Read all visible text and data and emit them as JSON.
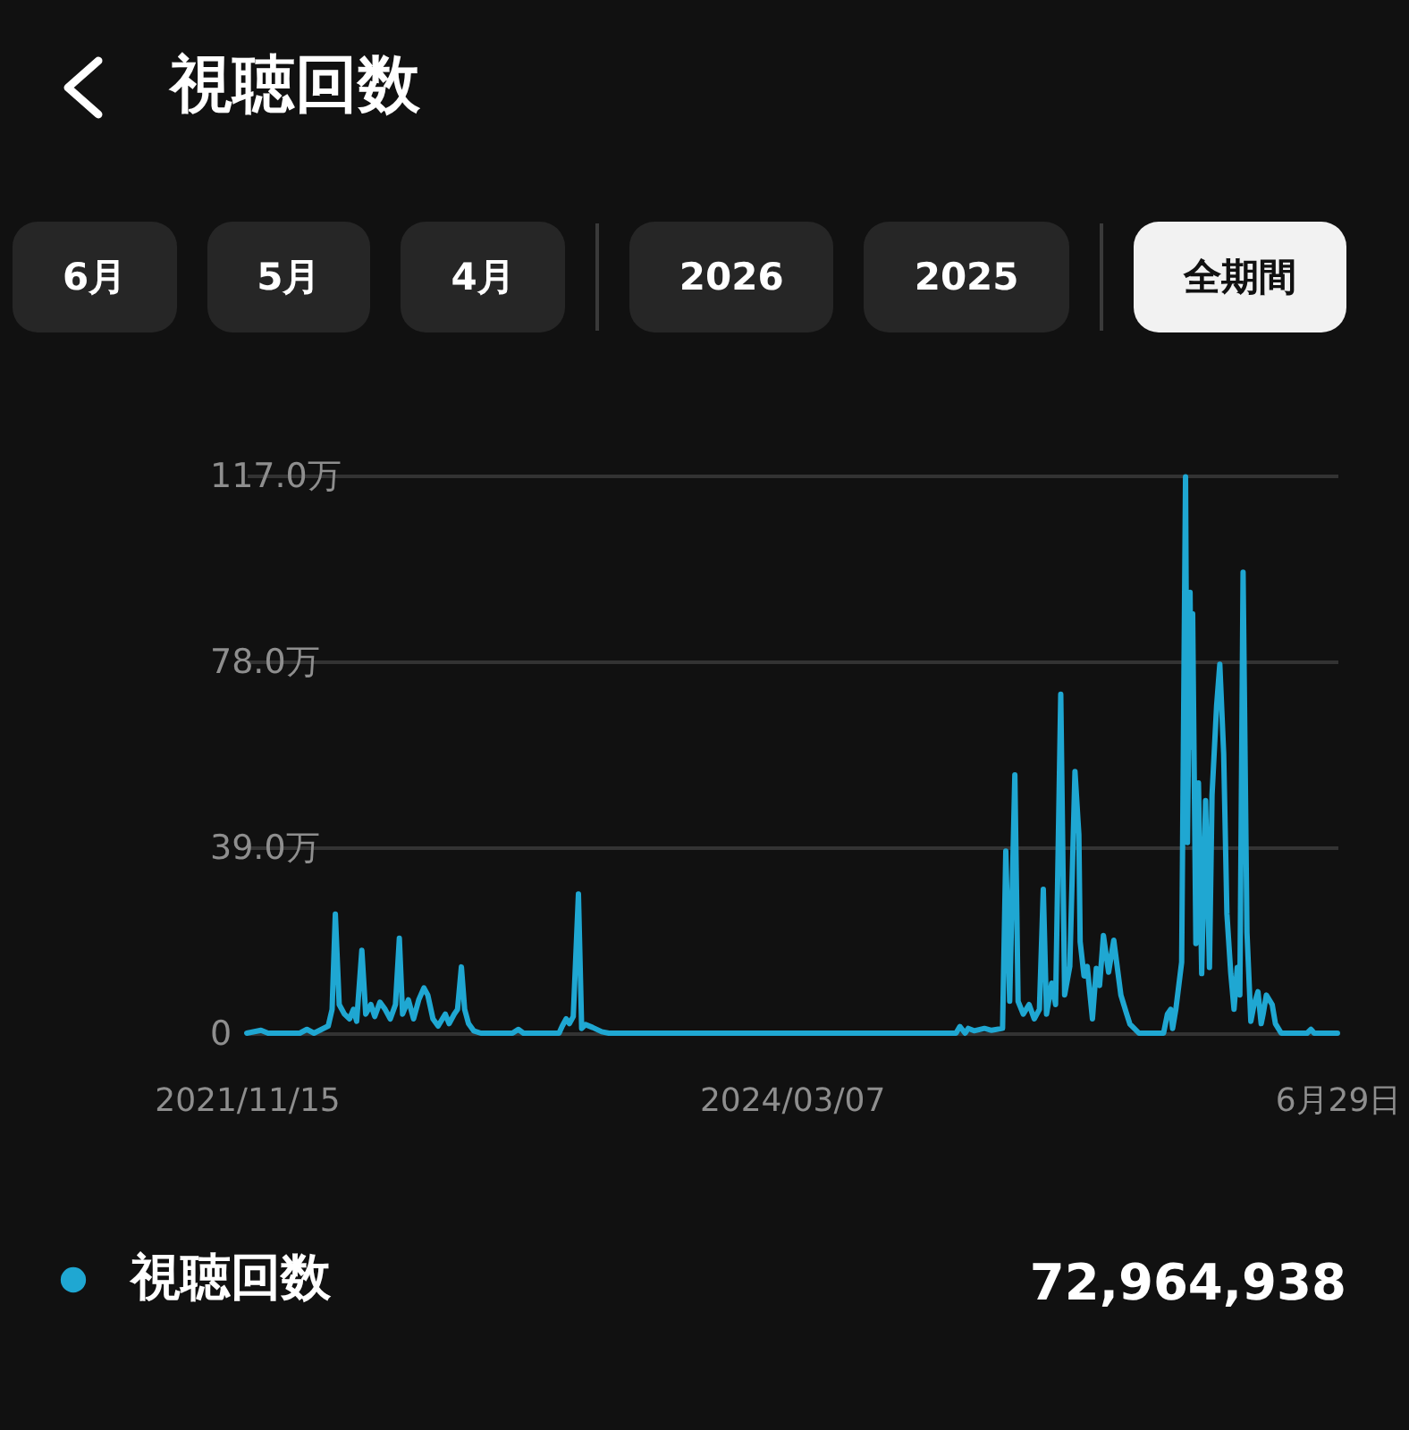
{
  "chart_data": {
    "type": "line",
    "title": "視聴回数",
    "x": [
      "2021-11-15",
      "2021-12-07",
      "2021-12-18",
      "2022-02-05",
      "2022-02-16",
      "2022-02-27",
      "2022-03-21",
      "2022-03-27",
      "2022-04-01",
      "2022-04-07",
      "2022-04-15",
      "2022-04-23",
      "2022-04-29",
      "2022-05-04",
      "2022-05-12",
      "2022-05-18",
      "2022-05-26",
      "2022-06-01",
      "2022-06-09",
      "2022-06-17",
      "2022-06-25",
      "2022-07-03",
      "2022-07-09",
      "2022-07-14",
      "2022-07-23",
      "2022-07-31",
      "2022-08-08",
      "2022-08-16",
      "2022-08-22",
      "2022-08-30",
      "2022-09-07",
      "2022-09-18",
      "2022-09-24",
      "2022-10-02",
      "2022-10-07",
      "2022-10-13",
      "2022-10-18",
      "2022-10-24",
      "2022-11-01",
      "2022-11-12",
      "2022-12-31",
      "2023-01-09",
      "2023-01-17",
      "2023-03-13",
      "2023-03-18",
      "2023-03-24",
      "2023-03-29",
      "2023-04-04",
      "2023-04-12",
      "2023-04-17",
      "2023-04-23",
      "2023-05-04",
      "2023-05-18",
      "2023-05-29",
      "2024-11-16",
      "2024-11-22",
      "2024-11-30",
      "2024-12-05",
      "2024-12-14",
      "2024-12-30",
      "2025-01-10",
      "2025-01-27",
      "2025-02-01",
      "2025-02-07",
      "2025-02-15",
      "2025-02-20",
      "2025-02-28",
      "2025-03-09",
      "2025-03-17",
      "2025-03-25",
      "2025-03-31",
      "2025-04-05",
      "2025-04-13",
      "2025-04-19",
      "2025-04-27",
      "2025-05-03",
      "2025-05-11",
      "2025-05-19",
      "2025-05-25",
      "2025-05-27",
      "2025-06-02",
      "2025-06-07",
      "2025-06-15",
      "2025-06-21",
      "2025-06-26",
      "2025-07-02",
      "2025-07-10",
      "2025-07-18",
      "2025-07-29",
      "2025-08-07",
      "2025-08-12",
      "2025-08-26",
      "2025-10-03",
      "2025-10-09",
      "2025-10-14",
      "2025-10-17",
      "2025-10-22",
      "2025-10-31",
      "2025-11-06",
      "2025-11-09",
      "2025-11-13",
      "2025-11-15",
      "2025-11-17",
      "2025-11-22",
      "2025-11-26",
      "2025-12-01",
      "2025-12-07",
      "2025-12-13",
      "2025-12-17",
      "2025-12-24",
      "2025-12-29",
      "2026-01-04",
      "2026-01-09",
      "2026-01-15",
      "2026-01-20",
      "2026-01-25",
      "2026-01-29",
      "2026-02-03",
      "2026-02-09",
      "2026-02-15",
      "2026-02-20",
      "2026-02-26",
      "2026-03-03",
      "2026-03-06",
      "2026-03-11",
      "2026-03-20",
      "2026-03-25",
      "2026-04-03",
      "2026-05-13",
      "2026-05-19",
      "2026-05-24",
      "2026-06-29"
    ],
    "series": [
      {
        "name": "視聴回数",
        "color": "#1fa7d2",
        "values": [
          0,
          0.6,
          0,
          0,
          0.8,
          0,
          1.5,
          5,
          25,
          6,
          4,
          3,
          5,
          2.5,
          17.4,
          4,
          6,
          3.5,
          6.5,
          5,
          3,
          6,
          19.9,
          4,
          7,
          3,
          7,
          9.5,
          8,
          3,
          1.5,
          4,
          2,
          4,
          5,
          13.9,
          5,
          2,
          0.5,
          0,
          0,
          0.8,
          0,
          0,
          1.5,
          3,
          2,
          3.5,
          29.2,
          1,
          1.8,
          1.2,
          0.3,
          0,
          0,
          1.4,
          0,
          1,
          0.5,
          1,
          0.6,
          1,
          38.2,
          6.7,
          54.2,
          6.7,
          4,
          6,
          3,
          5,
          30.2,
          4,
          10.5,
          6,
          71.1,
          8,
          14,
          54.9,
          41.7,
          19.2,
          12,
          14,
          3,
          13.6,
          10,
          20.5,
          12.8,
          19.5,
          8,
          4,
          1.9,
          0,
          0,
          4,
          5,
          1,
          5,
          14.9,
          116.7,
          40,
          92.5,
          60,
          88,
          18.8,
          52.5,
          12.5,
          48.8,
          13.8,
          50,
          68.6,
          77.4,
          58.6,
          25,
          12.5,
          5,
          13.8,
          8,
          96.7,
          21.1,
          2.5,
          6,
          8.7,
          2,
          4,
          8,
          6,
          2,
          0,
          0,
          0.8,
          0,
          0
        ]
      }
    ],
    "xlim": [
      "2021-11-15",
      "2026-06-29"
    ],
    "xticks": [
      {
        "value": "2021-11-15",
        "label": "2021/11/15"
      },
      {
        "value": "2024-03-07",
        "label": "2024/03/07"
      },
      {
        "value": "2026-06-29",
        "label": "6月29日"
      }
    ],
    "ylim": [
      0,
      117
    ],
    "yticks": [
      0,
      {
        "value": 39,
        "label": "39.0万"
      },
      {
        "value": 78,
        "label": "78.0万"
      },
      {
        "value": 117,
        "label": "117.0万"
      }
    ],
    "grid": "y",
    "legend": "bottom left",
    "annotations": [
      "6月",
      "5月",
      "4月",
      "2026",
      "2025",
      "全期間",
      "72,964,938"
    ]
  }
}
